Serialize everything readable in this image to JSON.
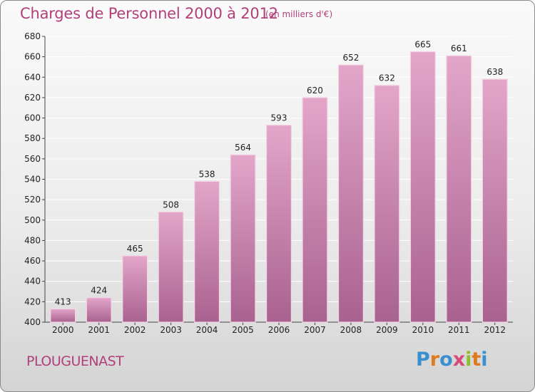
{
  "header": {
    "title": "Charges de Personnel 2000 à 2012",
    "subtitle": "(en milliers d'€)"
  },
  "footer": {
    "commune": "PLOUGUENAST",
    "logo_letters": [
      {
        "ch": "P",
        "color": "#3a8fd0"
      },
      {
        "ch": "r",
        "color": "#e07a1f"
      },
      {
        "ch": "o",
        "color": "#3a8fd0"
      },
      {
        "ch": "x",
        "color": "#d64a7a"
      },
      {
        "ch": "i",
        "color": "#8dbf2b"
      },
      {
        "ch": "t",
        "color": "#e07a1f"
      },
      {
        "ch": "i",
        "color": "#3a8fd0"
      }
    ]
  },
  "colors": {
    "bar": "#cf7fac",
    "bar_dark": "#a8628f",
    "bar_light": "#e3a6c9",
    "title": "#b0407a",
    "grid": "#ffffff"
  },
  "chart_data": {
    "type": "bar",
    "title": "Charges de Personnel 2000 à 2012",
    "subtitle": "(en milliers d'€)",
    "categories": [
      "2000",
      "2001",
      "2002",
      "2003",
      "2004",
      "2005",
      "2006",
      "2007",
      "2008",
      "2009",
      "2010",
      "2011",
      "2012"
    ],
    "values": [
      413,
      424,
      465,
      508,
      538,
      564,
      593,
      620,
      652,
      632,
      665,
      661,
      638
    ],
    "ylim": [
      400,
      680
    ],
    "yticks": [
      400,
      420,
      440,
      460,
      480,
      500,
      520,
      540,
      560,
      580,
      600,
      620,
      640,
      660,
      680
    ],
    "grid": true,
    "xlabel": "",
    "ylabel": ""
  }
}
